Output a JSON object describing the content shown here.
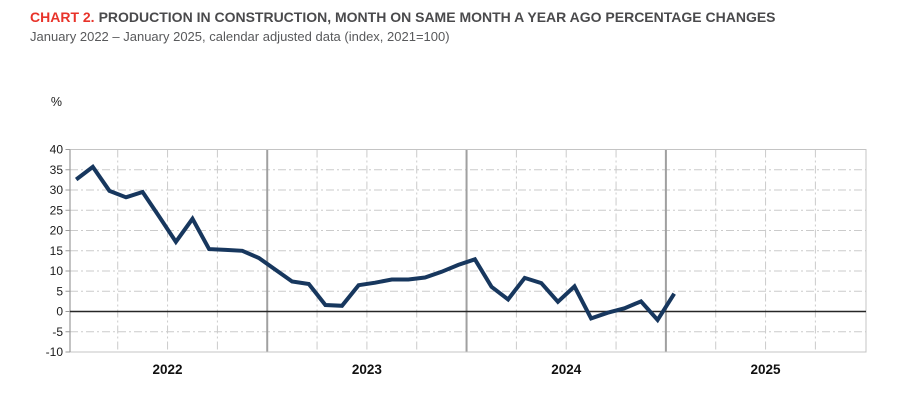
{
  "header": {
    "chart_label": "CHART 2.",
    "title": "PRODUCTION IN CONSTRUCTION, MONTH ON SAME MONTH A YEAR AGO PERCENTAGE CHANGES",
    "subtitle": "January 2022 – January 2025, calendar adjusted data (index, 2021=100)"
  },
  "chart_data": {
    "type": "line",
    "title": "Production in construction, month on same month a year ago percentage changes",
    "ylabel": "%",
    "xlabel": "",
    "ylim": [
      -10,
      40
    ],
    "yticks": [
      40,
      35,
      30,
      25,
      20,
      15,
      10,
      5,
      0,
      -5,
      -10
    ],
    "year_labels": [
      "2022",
      "2023",
      "2024",
      "2025"
    ],
    "grid": true,
    "legend_position": "none",
    "zero_line": true,
    "x": [
      "Jan 2022",
      "Feb 2022",
      "Mar 2022",
      "Apr 2022",
      "May 2022",
      "Jun 2022",
      "Jul 2022",
      "Aug 2022",
      "Sep 2022",
      "Oct 2022",
      "Nov 2022",
      "Dec 2022",
      "Jan 2023",
      "Feb 2023",
      "Mar 2023",
      "Apr 2023",
      "May 2023",
      "Jun 2023",
      "Jul 2023",
      "Aug 2023",
      "Sep 2023",
      "Oct 2023",
      "Nov 2023",
      "Dec 2023",
      "Jan 2024",
      "Feb 2024",
      "Mar 2024",
      "Apr 2024",
      "May 2024",
      "Jun 2024",
      "Jul 2024",
      "Aug 2024",
      "Sep 2024",
      "Oct 2024",
      "Nov 2024",
      "Dec 2024",
      "Jan 2025"
    ],
    "series": [
      {
        "name": "Production in construction (calendar adjusted, YoY % change)",
        "values": [
          32.6,
          35.7,
          29.8,
          28.2,
          29.5,
          23.4,
          17.2,
          22.9,
          15.4,
          15.2,
          15.0,
          13.2,
          10.3,
          7.4,
          6.8,
          1.6,
          1.4,
          6.5,
          7.1,
          7.9,
          7.9,
          8.4,
          9.8,
          11.5,
          12.9,
          6.1,
          3.0,
          8.3,
          7.0,
          2.4,
          6.2,
          -1.7,
          -0.3,
          0.8,
          2.5,
          -2.1,
          4.4
        ]
      }
    ],
    "line_color": "#17375e"
  },
  "colors": {
    "accent_red": "#e8332a",
    "title_gray": "#4a4a4c",
    "subtitle_gray": "#58595b",
    "line_navy": "#17375e",
    "grid_gray": "#cbcbcb",
    "year_line_gray": "#a0a0a0",
    "axis_border_gray": "#9b9b9b",
    "zero_line": "#262626"
  }
}
